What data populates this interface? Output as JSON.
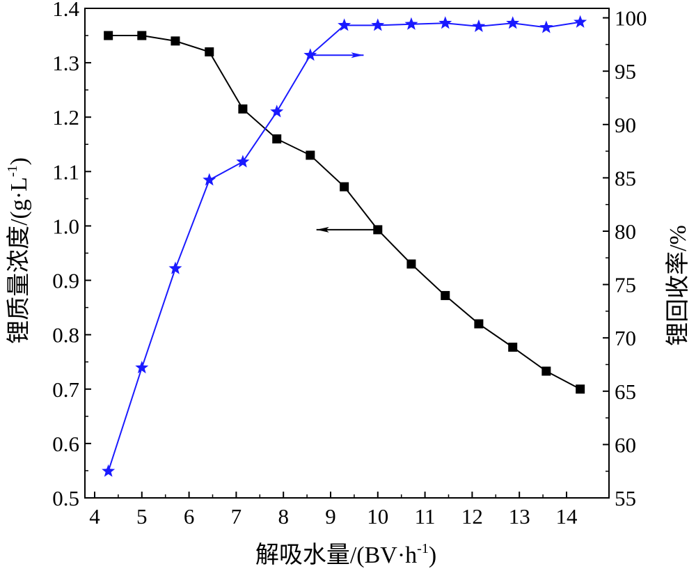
{
  "chart_data": {
    "type": "line",
    "xlabel": "解吸水量/(BV·h",
    "xlabel_sup": "-1",
    "xlabel_end": ")",
    "ylabel_left": "锂质量浓度/(g·L",
    "ylabel_left_sup": "-1",
    "ylabel_left_end": ")",
    "ylabel_right": "锂回收率/%",
    "xlim": [
      4,
      14.5
    ],
    "ylim_left": [
      0.5,
      1.4
    ],
    "ylim_right": [
      55,
      101
    ],
    "x_ticks": [
      "4",
      "5",
      "6",
      "7",
      "8",
      "9",
      "10",
      "11",
      "12",
      "13",
      "14"
    ],
    "y_left_ticks": [
      "0.5",
      "0.6",
      "0.7",
      "0.8",
      "0.9",
      "1.0",
      "1.1",
      "1.2",
      "1.3",
      "1.4"
    ],
    "y_right_ticks": [
      "55",
      "60",
      "65",
      "70",
      "75",
      "80",
      "85",
      "90",
      "95",
      "100"
    ],
    "x": [
      4.29,
      5.0,
      5.71,
      6.43,
      7.14,
      7.86,
      8.57,
      9.29,
      10.0,
      10.71,
      11.43,
      12.14,
      12.86,
      13.57,
      14.29
    ],
    "series": [
      {
        "axis": "left",
        "color": "#000000",
        "marker": "square",
        "values": [
          1.35,
          1.35,
          1.34,
          1.32,
          1.215,
          1.16,
          1.13,
          1.072,
          0.993,
          0.93,
          0.872,
          0.82,
          0.777,
          0.733,
          0.7
        ]
      },
      {
        "axis": "right",
        "color": "#1a1aff",
        "marker": "star",
        "values": [
          57.5,
          67.2,
          76.5,
          84.8,
          86.5,
          91.2,
          96.5,
          99.3,
          99.3,
          99.4,
          99.5,
          99.2,
          99.5,
          99.1,
          99.6
        ]
      }
    ],
    "annotations": [
      {
        "series": 1,
        "direction": "right",
        "x_from": 8.57,
        "x_to": 9.7,
        "y": 96.5
      },
      {
        "series": 0,
        "direction": "left",
        "x_from": 10.0,
        "x_to": 8.7,
        "y": 0.993
      }
    ]
  }
}
